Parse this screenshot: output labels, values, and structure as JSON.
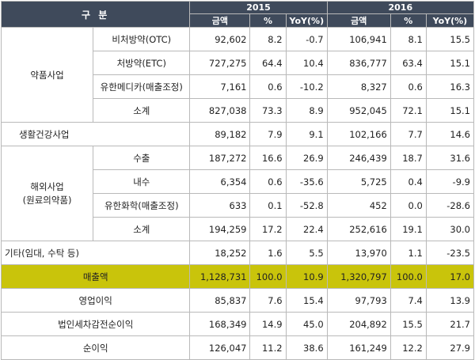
{
  "header": {
    "category": "구 분",
    "year_2015": "2015",
    "year_2016": "2016",
    "col_amount": "금액",
    "col_pct": "%",
    "col_yoy": "YoY(%)"
  },
  "rows": [
    {
      "group": "약품사업",
      "sub": "비처방약(OTC)",
      "v": [
        "92,602",
        "8.2",
        "-0.7",
        "106,941",
        "8.1",
        "15.5"
      ]
    },
    {
      "group": "",
      "sub": "처방약(ETC)",
      "v": [
        "727,275",
        "64.4",
        "10.4",
        "836,777",
        "63.4",
        "15.1"
      ]
    },
    {
      "group": "",
      "sub": "유한메디카(매출조정)",
      "v": [
        "7,161",
        "0.6",
        "-10.2",
        "8,327",
        "0.6",
        "16.3"
      ]
    },
    {
      "group": "",
      "sub": "소계",
      "v": [
        "827,038",
        "73.3",
        "8.9",
        "952,045",
        "72.1",
        "15.1"
      ]
    },
    {
      "group": "생활건강사업",
      "sub": "",
      "v": [
        "89,182",
        "7.9",
        "9.1",
        "102,166",
        "7.7",
        "14.6"
      ]
    },
    {
      "group": "해외사업\n(원료의약품)",
      "sub": "수출",
      "v": [
        "187,272",
        "16.6",
        "26.9",
        "246,439",
        "18.7",
        "31.6"
      ]
    },
    {
      "group": "",
      "sub": "내수",
      "v": [
        "6,354",
        "0.6",
        "-35.6",
        "5,725",
        "0.4",
        "-9.9"
      ]
    },
    {
      "group": "",
      "sub": "유한화학(매출조정)",
      "v": [
        "633",
        "0.1",
        "-52.8",
        "452",
        "0.0",
        "-28.6"
      ]
    },
    {
      "group": "",
      "sub": "소계",
      "v": [
        "194,259",
        "17.2",
        "22.4",
        "252,616",
        "19.1",
        "30.0"
      ]
    },
    {
      "group": "기타(임대, 수탁 등)",
      "sub": "",
      "v": [
        "18,252",
        "1.6",
        "5.5",
        "13,970",
        "1.1",
        "-23.5"
      ]
    },
    {
      "group": "매출액",
      "sub": "",
      "v": [
        "1,128,731",
        "100.0",
        "10.9",
        "1,320,797",
        "100.0",
        "17.0"
      ]
    },
    {
      "group": "영업이익",
      "sub": "",
      "v": [
        "85,837",
        "7.6",
        "15.4",
        "97,793",
        "7.4",
        "13.9"
      ]
    },
    {
      "group": "법인세차감전순이익",
      "sub": "",
      "v": [
        "168,349",
        "14.9",
        "45.0",
        "204,892",
        "15.5",
        "21.7"
      ]
    },
    {
      "group": "순이익",
      "sub": "",
      "v": [
        "126,047",
        "11.2",
        "38.6",
        "161,249",
        "12.2",
        "27.9"
      ]
    }
  ],
  "colors": {
    "header_bg": "#3f4a5b",
    "highlight": "#c9c40b"
  }
}
